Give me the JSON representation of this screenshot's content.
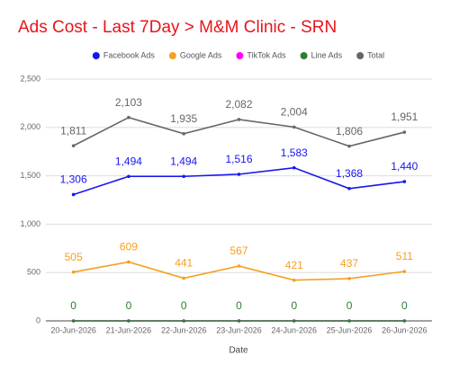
{
  "chart_data": {
    "type": "line",
    "title": "Ads Cost - Last 7Day > M&M Clinic - SRN",
    "x_label": "Date",
    "categories": [
      "20-Jun-2026",
      "21-Jun-2026",
      "22-Jun-2026",
      "23-Jun-2026",
      "24-Jun-2026",
      "25-Jun-2026",
      "26-Jun-2026"
    ],
    "series": [
      {
        "name": "Facebook Ads",
        "color": "#1515f0",
        "show_labels": true,
        "values": [
          1306,
          1494,
          1494,
          1516,
          1583,
          1368,
          1440
        ],
        "value_labels": [
          "1,306",
          "1,494",
          "1,494",
          "1,516",
          "1,583",
          "1,368",
          "1,440"
        ]
      },
      {
        "name": "Google Ads",
        "color": "#f4a020",
        "show_labels": true,
        "values": [
          505,
          609,
          441,
          567,
          421,
          437,
          511
        ]
      },
      {
        "name": "TikTok Ads",
        "color": "#ff00ff",
        "show_labels": false,
        "values": [
          0,
          0,
          0,
          0,
          0,
          0,
          0
        ]
      },
      {
        "name": "Line Ads",
        "color": "#2e7d32",
        "show_labels": true,
        "values": [
          0,
          0,
          0,
          0,
          0,
          0,
          0
        ]
      },
      {
        "name": "Total",
        "color": "#666666",
        "show_labels": true,
        "values": [
          1811,
          2103,
          1935,
          2082,
          2004,
          1806,
          1951
        ],
        "value_labels": [
          "1,811",
          "2,103",
          "1,935",
          "2,082",
          "2,004",
          "1,806",
          "1,951"
        ]
      }
    ],
    "ylim": [
      0,
      2500
    ],
    "yticks": [
      0,
      500,
      {
        "value": 1000,
        "label": "1,000"
      },
      {
        "value": 1500,
        "label": "1,500"
      },
      {
        "value": 2000,
        "label": "2,000"
      },
      {
        "value": 2500,
        "label": "2,500"
      }
    ],
    "grid": true,
    "title_color": "#e8141a"
  }
}
